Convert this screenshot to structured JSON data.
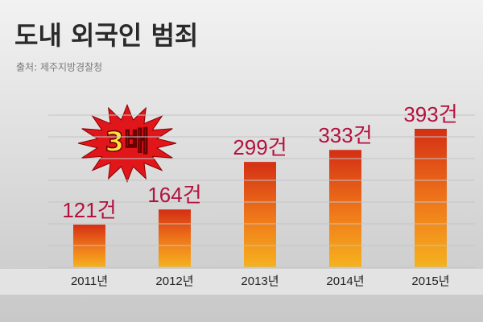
{
  "chart_data": {
    "type": "bar",
    "title": "도내 외국인 범죄",
    "subtitle": "출처: 제주지방경찰청",
    "categories": [
      "2011년",
      "2012년",
      "2013년",
      "2014년",
      "2015년"
    ],
    "values": [
      121,
      164,
      299,
      333,
      393
    ],
    "value_labels": [
      "121건",
      "164건",
      "299건",
      "333건",
      "393건"
    ],
    "annotation": "3배",
    "color": "#d42f14",
    "grid": true
  }
}
